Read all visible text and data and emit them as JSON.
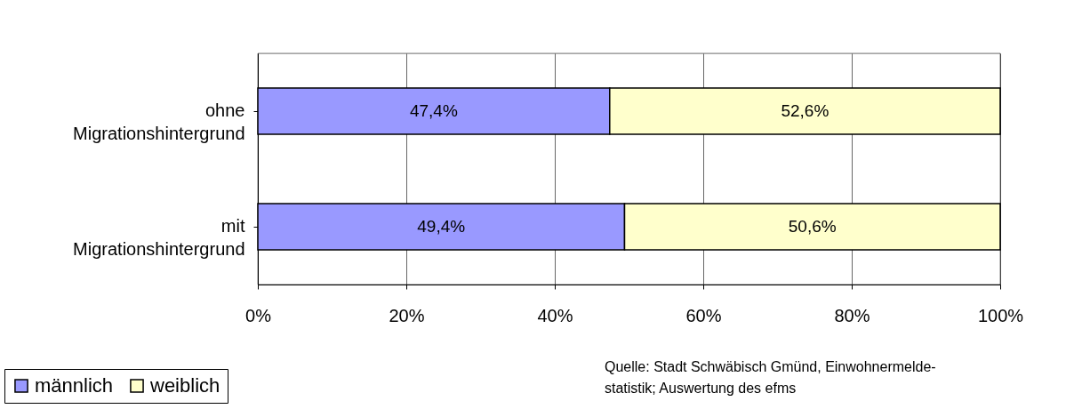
{
  "chart_data": {
    "type": "bar",
    "orientation": "horizontal",
    "stacked": true,
    "categories": [
      "ohne Migrationshintergrund",
      "mit Migrationshintergrund"
    ],
    "series": [
      {
        "name": "männlich",
        "color": "#9999ff",
        "values": [
          47.4,
          49.4
        ],
        "value_labels": [
          "47,4%",
          "49,4%"
        ]
      },
      {
        "name": "weiblich",
        "color": "#ffffcc",
        "values": [
          52.6,
          50.6
        ],
        "value_labels": [
          "52,6%",
          "50,6%"
        ]
      }
    ],
    "xlim": [
      0,
      100
    ],
    "xticks": [
      {
        "value": 0,
        "label": "0%"
      },
      {
        "value": 20,
        "label": "20%"
      },
      {
        "value": 40,
        "label": "40%"
      },
      {
        "value": 60,
        "label": "60%"
      },
      {
        "value": 80,
        "label": "80%"
      },
      {
        "value": 100,
        "label": "100%"
      }
    ],
    "grid": "x",
    "legend": "bottom left",
    "annotations": [
      "Quelle: Stadt Schwäbisch Gmünd, Einwohnermelde-\nstatistik; Auswertung des efms"
    ]
  }
}
